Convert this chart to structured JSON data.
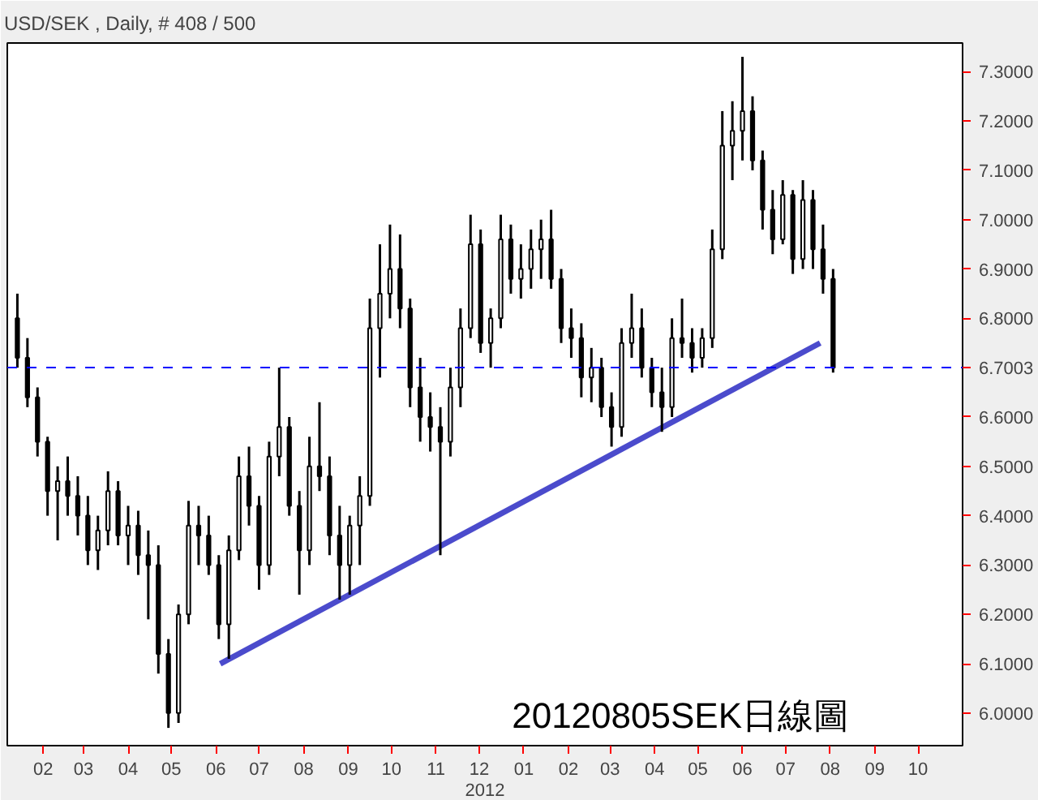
{
  "chart_data": {
    "type": "candlestick",
    "title": "USD/SEK , Daily, # 408 / 500",
    "xlabel": "2012",
    "annotations": [
      "20120805SEK日線圖"
    ],
    "x": [
      "2011-01-14",
      "2011-01-21",
      "2011-01-28",
      "2011-02-04",
      "2011-02-11",
      "2011-02-18",
      "2011-02-25",
      "2011-03-04",
      "2011-03-11",
      "2011-03-18",
      "2011-03-25",
      "2011-04-01",
      "2011-04-08",
      "2011-04-15",
      "2011-04-22",
      "2011-04-29",
      "2011-05-06",
      "2011-05-13",
      "2011-05-20",
      "2011-05-27",
      "2011-06-03",
      "2011-06-10",
      "2011-06-17",
      "2011-06-24",
      "2011-07-01",
      "2011-07-08",
      "2011-07-15",
      "2011-07-22",
      "2011-07-29",
      "2011-08-05",
      "2011-08-12",
      "2011-08-19",
      "2011-08-26",
      "2011-09-02",
      "2011-09-09",
      "2011-09-16",
      "2011-09-23",
      "2011-09-30",
      "2011-10-07",
      "2011-10-14",
      "2011-10-21",
      "2011-10-28",
      "2011-11-04",
      "2011-11-11",
      "2011-11-18",
      "2011-11-25",
      "2011-12-02",
      "2011-12-09",
      "2011-12-16",
      "2011-12-23",
      "2011-12-30",
      "2012-01-06",
      "2012-01-13",
      "2012-01-20",
      "2012-01-27",
      "2012-02-03",
      "2012-02-10",
      "2012-02-17",
      "2012-02-24",
      "2012-03-02",
      "2012-03-09",
      "2012-03-16",
      "2012-03-23",
      "2012-03-30",
      "2012-04-06",
      "2012-04-13",
      "2012-04-20",
      "2012-04-27",
      "2012-05-04",
      "2012-05-11",
      "2012-05-18",
      "2012-05-25",
      "2012-06-01",
      "2012-06-08",
      "2012-06-15",
      "2012-06-22",
      "2012-06-29",
      "2012-07-06",
      "2012-07-13",
      "2012-07-20",
      "2012-07-27",
      "2012-08-03"
    ],
    "ohlc": [
      [
        6.8,
        6.85,
        6.7,
        6.72
      ],
      [
        6.72,
        6.76,
        6.62,
        6.64
      ],
      [
        6.64,
        6.66,
        6.52,
        6.55
      ],
      [
        6.55,
        6.56,
        6.4,
        6.45
      ],
      [
        6.45,
        6.5,
        6.35,
        6.47
      ],
      [
        6.47,
        6.52,
        6.4,
        6.44
      ],
      [
        6.44,
        6.48,
        6.36,
        6.4
      ],
      [
        6.4,
        6.44,
        6.3,
        6.33
      ],
      [
        6.33,
        6.4,
        6.29,
        6.37
      ],
      [
        6.37,
        6.49,
        6.34,
        6.45
      ],
      [
        6.45,
        6.47,
        6.34,
        6.36
      ],
      [
        6.36,
        6.42,
        6.3,
        6.38
      ],
      [
        6.38,
        6.41,
        6.28,
        6.32
      ],
      [
        6.32,
        6.37,
        6.19,
        6.3
      ],
      [
        6.3,
        6.34,
        6.08,
        6.12
      ],
      [
        6.12,
        6.15,
        5.97,
        6.0
      ],
      [
        6.0,
        6.22,
        5.98,
        6.2
      ],
      [
        6.2,
        6.43,
        6.18,
        6.38
      ],
      [
        6.38,
        6.42,
        6.3,
        6.36
      ],
      [
        6.36,
        6.4,
        6.28,
        6.3
      ],
      [
        6.3,
        6.32,
        6.15,
        6.18
      ],
      [
        6.18,
        6.36,
        6.11,
        6.33
      ],
      [
        6.33,
        6.52,
        6.31,
        6.48
      ],
      [
        6.48,
        6.54,
        6.38,
        6.42
      ],
      [
        6.42,
        6.44,
        6.25,
        6.3
      ],
      [
        6.3,
        6.55,
        6.28,
        6.52
      ],
      [
        6.52,
        6.7,
        6.48,
        6.58
      ],
      [
        6.58,
        6.6,
        6.4,
        6.42
      ],
      [
        6.42,
        6.45,
        6.24,
        6.33
      ],
      [
        6.33,
        6.56,
        6.3,
        6.5
      ],
      [
        6.5,
        6.63,
        6.45,
        6.48
      ],
      [
        6.48,
        6.52,
        6.32,
        6.36
      ],
      [
        6.36,
        6.42,
        6.23,
        6.3
      ],
      [
        6.3,
        6.4,
        6.24,
        6.38
      ],
      [
        6.38,
        6.48,
        6.3,
        6.44
      ],
      [
        6.44,
        6.84,
        6.42,
        6.78
      ],
      [
        6.78,
        6.95,
        6.68,
        6.85
      ],
      [
        6.85,
        6.99,
        6.8,
        6.9
      ],
      [
        6.9,
        6.97,
        6.78,
        6.82
      ],
      [
        6.82,
        6.84,
        6.62,
        6.66
      ],
      [
        6.66,
        6.72,
        6.55,
        6.6
      ],
      [
        6.6,
        6.65,
        6.53,
        6.58
      ],
      [
        6.58,
        6.62,
        6.32,
        6.55
      ],
      [
        6.55,
        6.7,
        6.52,
        6.66
      ],
      [
        6.66,
        6.82,
        6.62,
        6.78
      ],
      [
        6.78,
        7.01,
        6.76,
        6.95
      ],
      [
        6.95,
        6.98,
        6.73,
        6.75
      ],
      [
        6.75,
        6.82,
        6.7,
        6.8
      ],
      [
        6.8,
        7.01,
        6.78,
        6.96
      ],
      [
        6.96,
        6.99,
        6.85,
        6.88
      ],
      [
        6.88,
        6.95,
        6.84,
        6.9
      ],
      [
        6.9,
        6.98,
        6.86,
        6.94
      ],
      [
        6.94,
        7.0,
        6.88,
        6.96
      ],
      [
        6.96,
        7.02,
        6.86,
        6.88
      ],
      [
        6.88,
        6.9,
        6.75,
        6.78
      ],
      [
        6.78,
        6.82,
        6.72,
        6.76
      ],
      [
        6.76,
        6.79,
        6.64,
        6.68
      ],
      [
        6.68,
        6.74,
        6.63,
        6.7
      ],
      [
        6.7,
        6.72,
        6.6,
        6.62
      ],
      [
        6.62,
        6.65,
        6.54,
        6.58
      ],
      [
        6.58,
        6.78,
        6.56,
        6.75
      ],
      [
        6.75,
        6.85,
        6.72,
        6.78
      ],
      [
        6.78,
        6.82,
        6.68,
        6.7
      ],
      [
        6.7,
        6.72,
        6.62,
        6.65
      ],
      [
        6.65,
        6.7,
        6.57,
        6.62
      ],
      [
        6.62,
        6.8,
        6.6,
        6.76
      ],
      [
        6.76,
        6.84,
        6.72,
        6.75
      ],
      [
        6.75,
        6.78,
        6.69,
        6.72
      ],
      [
        6.72,
        6.78,
        6.7,
        6.76
      ],
      [
        6.76,
        6.98,
        6.74,
        6.94
      ],
      [
        6.94,
        7.22,
        6.92,
        7.15
      ],
      [
        7.15,
        7.24,
        7.08,
        7.18
      ],
      [
        7.18,
        7.33,
        7.12,
        7.22
      ],
      [
        7.22,
        7.25,
        7.1,
        7.12
      ],
      [
        7.12,
        7.14,
        6.98,
        7.02
      ],
      [
        7.02,
        7.06,
        6.93,
        6.96
      ],
      [
        6.96,
        7.08,
        6.95,
        7.05
      ],
      [
        7.05,
        7.06,
        6.89,
        6.92
      ],
      [
        6.92,
        7.08,
        6.9,
        7.04
      ],
      [
        7.04,
        7.06,
        6.9,
        6.94
      ],
      [
        6.94,
        6.99,
        6.85,
        6.88
      ],
      [
        6.88,
        6.9,
        6.69,
        6.7
      ]
    ],
    "color": "#000000",
    "series": [
      {
        "type": "line",
        "color": "#4b4bcc",
        "x": [
          "2011-06-04",
          "2012-07-25"
        ],
        "values": [
          6.1,
          6.75
        ]
      }
    ],
    "xlim": [
      "2011-01-07",
      "2012-11-01"
    ],
    "xticks": [
      {
        "value": "2011-02-01",
        "label": "02"
      },
      {
        "value": "2011-03-01",
        "label": "03"
      },
      {
        "value": "2011-04-01",
        "label": "04"
      },
      {
        "value": "2011-05-01",
        "label": "05"
      },
      {
        "value": "2011-06-01",
        "label": "06"
      },
      {
        "value": "2011-07-01",
        "label": "07"
      },
      {
        "value": "2011-08-01",
        "label": "08"
      },
      {
        "value": "2011-09-01",
        "label": "09"
      },
      {
        "value": "2011-10-01",
        "label": "10"
      },
      {
        "value": "2011-11-01",
        "label": "11"
      },
      {
        "value": "2011-12-01",
        "label": "12"
      },
      {
        "value": "2012-01-01",
        "label": "01"
      },
      {
        "value": "2012-02-01",
        "label": "02"
      },
      {
        "value": "2012-03-01",
        "label": "03"
      },
      {
        "value": "2012-04-01",
        "label": "04"
      },
      {
        "value": "2012-05-01",
        "label": "05"
      },
      {
        "value": "2012-06-01",
        "label": "06"
      },
      {
        "value": "2012-07-01",
        "label": "07"
      },
      {
        "value": "2012-08-01",
        "label": "08"
      },
      {
        "value": "2012-09-01",
        "label": "09"
      },
      {
        "value": "2012-10-01",
        "label": "10"
      }
    ],
    "ylim": [
      5.934,
      7.358
    ],
    "yticks": [
      {
        "value": 6.0,
        "label": "6.0000"
      },
      {
        "value": 6.1,
        "label": "6.1000"
      },
      {
        "value": 6.2,
        "label": "6.2000"
      },
      {
        "value": 6.3,
        "label": "6.3000"
      },
      {
        "value": 6.4,
        "label": "6.4000"
      },
      {
        "value": 6.5,
        "label": "6.5000"
      },
      {
        "value": 6.6,
        "label": "6.6000"
      },
      {
        "value": 6.8,
        "label": "6.8000"
      },
      {
        "value": 6.9,
        "label": "6.9000"
      },
      {
        "value": 7.0,
        "label": "7.0000"
      },
      {
        "value": 7.1,
        "label": "7.1000"
      },
      {
        "value": 7.2,
        "label": "7.2000"
      },
      {
        "value": 7.3,
        "label": "7.3000"
      }
    ],
    "ref_lines": [
      {
        "axis": "y",
        "value": 6.7003,
        "label": "6.7003",
        "color": "#0000ff",
        "line_style": "dashed"
      }
    ],
    "grid": false
  }
}
